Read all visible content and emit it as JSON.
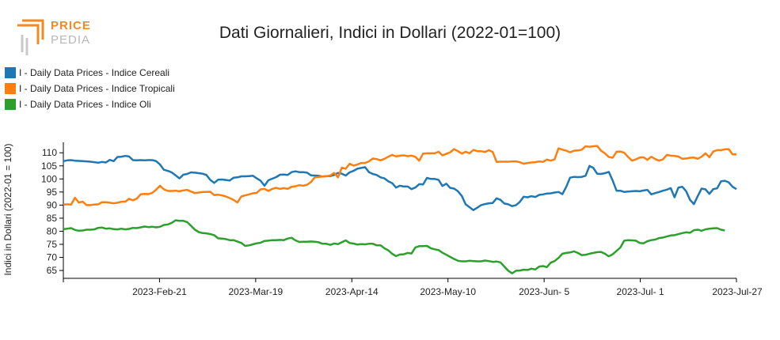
{
  "logo": {
    "line1": "PRICE",
    "line2": "PEDIA",
    "mark_color": "#f08a24"
  },
  "chart_data": {
    "type": "line",
    "title": "Dati Giornalieri, Indici in Dollari (2022-01=100)",
    "ylabel": "Indici in Dollari (2022-01 = 100)",
    "xlabel": "",
    "ylim": [
      62,
      114
    ],
    "y_ticks": [
      65,
      70,
      75,
      80,
      85,
      90,
      95,
      100,
      105,
      110
    ],
    "x_ticks": [
      "2023-Feb-21",
      "2023-Mar-19",
      "2023-Apr-14",
      "2023-May-10",
      "2023-Jun- 5",
      "2023-Jul- 1",
      "2023-Jul-27"
    ],
    "legend_position": "top-left",
    "grid": false,
    "series": [
      {
        "name": "I - Daily Data Prices - Indice Cereali",
        "color": "#1f77b4",
        "values": [
          106.8,
          107.1,
          107.2,
          107,
          106.9,
          106.8,
          106.7,
          106.6,
          106.4,
          106.2,
          106.5,
          106.3,
          107.3,
          106.8,
          108.4,
          108.5,
          108.8,
          108.6,
          107.2,
          107.1,
          107.2,
          107.1,
          107.2,
          107.2,
          106.8,
          105.5,
          103.5,
          103.1,
          102.5,
          101.4,
          100.2,
          101.6,
          101.9,
          102.5,
          102.4,
          102.2,
          102,
          101.5,
          99.6,
          98.5,
          99.7,
          99.8,
          99.6,
          99.4,
          100.5,
          100.6,
          101,
          101,
          101.1,
          101.2,
          100.2,
          99.3,
          97.4,
          99.5,
          100.1,
          100.7,
          101.6,
          101.7,
          101.5,
          102.6,
          102.9,
          102.6,
          102.6,
          102.4,
          101.4,
          101.3,
          101.2,
          100.9,
          101.1,
          101.1,
          101.5,
          102.3,
          102,
          101.3,
          102.5,
          103.1,
          103.9,
          104.2,
          104.5,
          102.6,
          101.9,
          101.5,
          100.6,
          100.2,
          99.1,
          98.4,
          96.7,
          97.4,
          97.1,
          97.1,
          96.1,
          96.7,
          98,
          97.9,
          100.4,
          100,
          100,
          99.6,
          97.3,
          98.2,
          96.6,
          96.3,
          95.3,
          93.5,
          90.3,
          89.2,
          88.1,
          89,
          90,
          90.4,
          90.7,
          90.8,
          92.6,
          92,
          90.6,
          90.3,
          89.6,
          90,
          91.2,
          93.2,
          93,
          93.4,
          93.1,
          93.9,
          94.1,
          94.4,
          94.5,
          94.8,
          95,
          94.2,
          97,
          100.5,
          100.8,
          100.7,
          100.8,
          101.2,
          105,
          104.2,
          102,
          101.9,
          102.2,
          102.7,
          99.4,
          95.5,
          95.5,
          95,
          95.2,
          95.3,
          95.4,
          95.3,
          95.6,
          95.8,
          94.1,
          94.6,
          95,
          95.5,
          95.9,
          96.5,
          93,
          96.7,
          97,
          95.3,
          92,
          90.4,
          93.4,
          96.3,
          96,
          94.3,
          96.1,
          96.4,
          99.1,
          99.3,
          98.7,
          97,
          96.1
        ]
      },
      {
        "name": "I - Daily Data Prices - Indice Tropicali",
        "color": "#ff7f0e",
        "values": [
          90.2,
          90.3,
          90.2,
          92.8,
          91,
          91.3,
          90,
          90,
          90.2,
          90.3,
          91.1,
          91.1,
          90.9,
          90.7,
          90.9,
          91.3,
          91.3,
          92.4,
          91.8,
          92.5,
          94.1,
          94.3,
          94.2,
          94.7,
          95.9,
          97.4,
          96,
          95.4,
          95.4,
          95.5,
          95.3,
          95.6,
          95.8,
          95.2,
          94.6,
          94.8,
          95,
          95,
          95.1,
          93.8,
          94,
          93.7,
          93.3,
          92.7,
          92,
          91,
          93.3,
          93.7,
          94.1,
          94.5,
          94.7,
          96,
          96.2,
          95.4,
          96.2,
          96.6,
          96.2,
          96.5,
          96.2,
          97,
          97.2,
          97.6,
          97.4,
          97.8,
          98.8,
          100.6,
          100.8,
          100.9,
          101,
          101.3,
          102.3,
          100.6,
          104.3,
          103.9,
          105.8,
          105.1,
          105.5,
          106.1,
          106.1,
          106.7,
          107.8,
          107.6,
          107.1,
          107.7,
          108.5,
          109.2,
          108.6,
          108.9,
          109,
          108.7,
          108.9,
          108.5,
          107,
          109.7,
          109.8,
          109.8,
          109.8,
          110.4,
          109,
          109.6,
          110.2,
          111.4,
          110.6,
          109.7,
          110.4,
          109.8,
          111.1,
          110.6,
          110.6,
          110.3,
          111,
          110.3,
          106.5,
          106.6,
          106.6,
          106.6,
          106.7,
          106.7,
          106.4,
          105.8,
          106.1,
          106.3,
          106.4,
          106.7,
          106.5,
          107.4,
          107,
          107.5,
          111.7,
          111.2,
          110.8,
          110.2,
          110.8,
          110.9,
          111.2,
          112.5,
          112.3,
          112.5,
          112.6,
          110.8,
          109.8,
          108.4,
          108.1,
          110.4,
          110.5,
          110,
          108.4,
          107,
          107.5,
          108.2,
          108.3,
          107.3,
          108.5,
          107.6,
          107,
          107.5,
          109.2,
          108.9,
          108.8,
          108.6,
          107.7,
          107.8,
          108.1,
          108.2,
          107.7,
          108.5,
          109.8,
          108.3,
          110.5,
          111,
          111,
          111.3,
          111.4,
          109.4,
          109.4
        ]
      },
      {
        "name": "I - Daily Data Prices - Indice Oli",
        "color": "#2ca02c",
        "values": [
          80.8,
          81,
          81.2,
          80.5,
          80.2,
          80.3,
          80.6,
          80.6,
          80.7,
          81.3,
          81.4,
          81,
          81.1,
          80.8,
          80.7,
          81,
          80.7,
          80.9,
          81.3,
          81.2,
          81.5,
          81.8,
          81.6,
          81.7,
          81.5,
          81.7,
          82.4,
          82.6,
          83.2,
          84.2,
          84,
          84,
          83.5,
          82.1,
          80.6,
          79.7,
          79.3,
          79.2,
          78.9,
          78.5,
          77.3,
          77.2,
          77,
          76.6,
          76.6,
          76.1,
          75.5,
          74.4,
          74.6,
          75,
          75.4,
          75.6,
          76.3,
          76.4,
          76.6,
          76.6,
          76.7,
          76.6,
          77.2,
          77.5,
          76.5,
          75.9,
          76,
          76,
          76.1,
          76,
          75.8,
          75.2,
          75.2,
          74.8,
          75.3,
          75.1,
          75.8,
          76.5,
          75.5,
          75.3,
          74.9,
          75.1,
          75,
          75.2,
          75.2,
          74.6,
          74.6,
          73.5,
          72.7,
          71.4,
          70.5,
          71.1,
          71.2,
          71.7,
          71.5,
          73.8,
          74.3,
          74.3,
          74.4,
          73.5,
          73.1,
          72.8,
          71.8,
          71,
          70.2,
          69.4,
          68.7,
          68.5,
          68.5,
          68.7,
          68.6,
          68.5,
          68.5,
          68.8,
          68.6,
          68.3,
          68.4,
          68.1,
          66.5,
          64.9,
          63.9,
          64.9,
          65,
          65.3,
          65.2,
          65.7,
          65.4,
          66.5,
          66.7,
          66.3,
          68,
          68.6,
          69.8,
          71.4,
          71.7,
          71.9,
          72.3,
          71.7,
          70.9,
          71,
          71.4,
          71.7,
          72,
          72.1,
          71.4,
          70.4,
          71.2,
          72.5,
          73.8,
          76.4,
          76.6,
          76.5,
          76.4,
          75.5,
          75.4,
          76.2,
          76.6,
          76.8,
          77.4,
          77.6,
          78,
          78.4,
          78.5,
          78.9,
          79.3,
          79.6,
          79.4,
          80.4,
          80.6,
          80.2,
          80.7,
          81,
          81.1,
          81.2,
          80.6,
          80.3
        ]
      }
    ]
  }
}
